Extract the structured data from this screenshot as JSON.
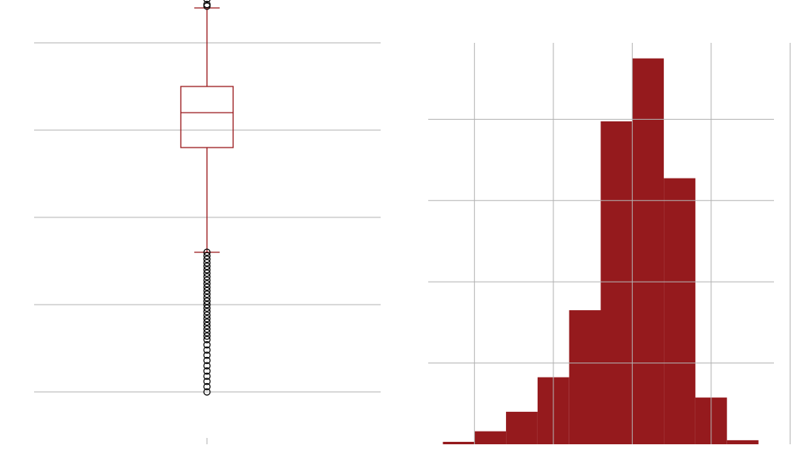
{
  "chart_data": [
    {
      "type": "box",
      "title": "",
      "xlabel": "",
      "ylabel": "",
      "y_range": [
        -15,
        8
      ],
      "grid": true,
      "colors": {
        "box": "#9b1b1e",
        "outlier": "#000000",
        "grid": "#b3b3b3"
      },
      "box": {
        "whisker_low": -7,
        "q1": -1,
        "median": 1,
        "q3": 2.5,
        "whisker_high": 7
      },
      "outliers": [
        8,
        7.5,
        7.2,
        7.1,
        -7,
        -7.2,
        -7.4,
        -7.6,
        -7.8,
        -8,
        -8.2,
        -8.4,
        -8.6,
        -8.8,
        -9,
        -9.2,
        -9.4,
        -9.6,
        -9.8,
        -10,
        -10.2,
        -10.4,
        -10.6,
        -10.8,
        -11,
        -11.2,
        -11.4,
        -11.6,
        -11.8,
        -12,
        -12.3,
        -12.6,
        -12.9,
        -13.2,
        -13.5,
        -13.8,
        -14.1,
        -14.4,
        -14.7,
        -15
      ]
    },
    {
      "type": "histogram",
      "title": "",
      "xlabel": "",
      "ylabel": "",
      "bar_color": "#951a1d",
      "grid": true,
      "bin_edges": [
        -15,
        -13,
        -11,
        -9,
        -7,
        -5,
        -3,
        -1,
        1,
        3,
        5
      ],
      "counts": [
        6,
        32,
        80,
        165,
        330,
        795,
        950,
        655,
        115,
        10
      ],
      "x_range": [
        -15,
        5
      ],
      "y_range": [
        0,
        1000
      ]
    }
  ]
}
